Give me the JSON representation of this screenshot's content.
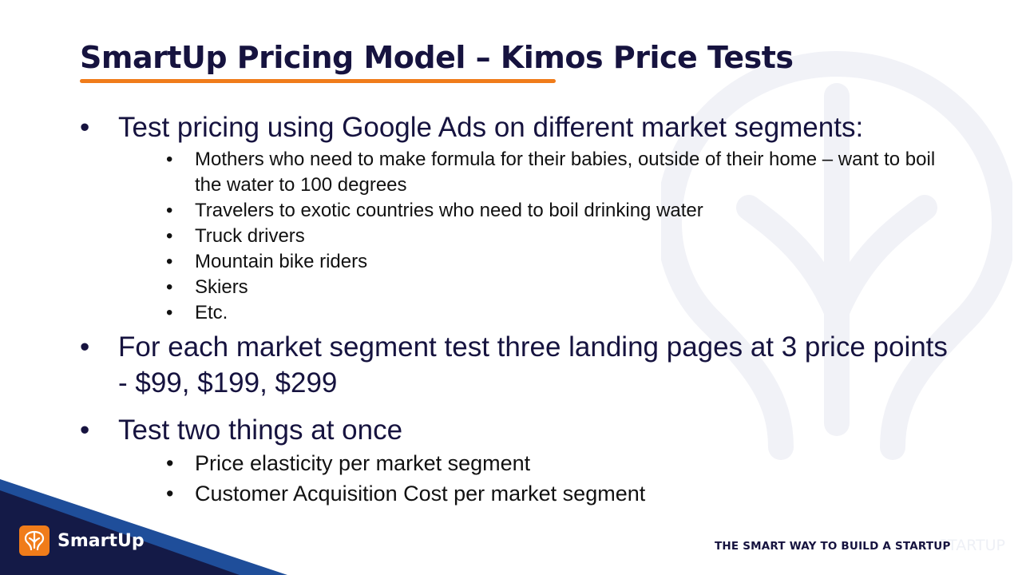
{
  "slide": {
    "title": "SmartUp Pricing Model – Kimos Price Tests",
    "bullets": [
      {
        "text": "Test pricing using Google Ads on different market segments:",
        "sub": [
          "Mothers who need to make formula for their babies, outside of their home – want to boil the water to 100 degrees",
          "Travelers to exotic countries who need to boil drinking water",
          "Truck drivers",
          "Mountain bike riders",
          "Skiers",
          "Etc."
        ]
      },
      {
        "text": "For each market segment test three landing pages at 3 price points - $99, $199, $299",
        "sub": []
      },
      {
        "text": "Test two things at once",
        "sub": [
          "Price elasticity per market segment",
          "Customer Acquisition Cost per market segment"
        ]
      }
    ]
  },
  "footer": {
    "brand": "SmartUp",
    "tagline": "THE SMART WAY TO BUILD A STARTUP",
    "tagline_echo": "STARTUP"
  },
  "colors": {
    "title": "#16133f",
    "accent_orange": "#f07c1a",
    "navy": "#141a47",
    "blue_stripe": "#1f4e9a",
    "watermark": "#f1f2f7"
  },
  "icons": {
    "watermark": "tree-logo-icon",
    "brand": "tree-logo-icon"
  }
}
